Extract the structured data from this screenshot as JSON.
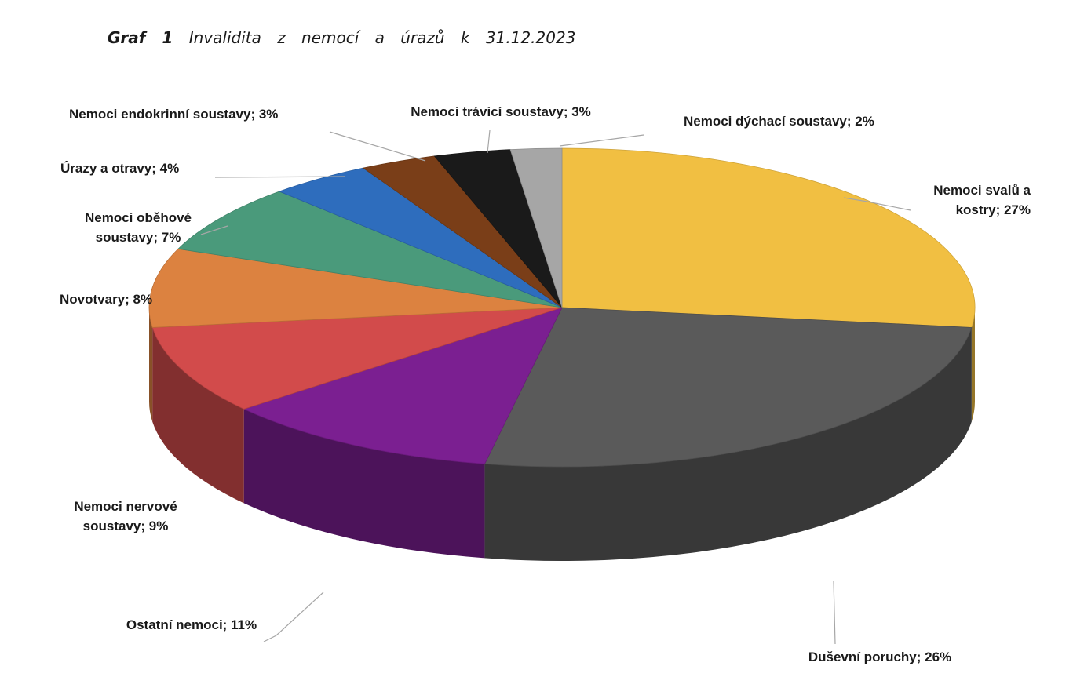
{
  "title": {
    "prefix": "Graf 1",
    "text": "Invalidita z nemocí a úrazů k 31.12.2023"
  },
  "chart_data": {
    "type": "pie",
    "style": "3d-exploded-tilted",
    "title": "Invalidita z nemocí a úrazů k 31.12.2023",
    "legend": "none",
    "data_labels": "category-and-percent",
    "slices": [
      {
        "name": "Nemoci svalů a kostry",
        "value": 27,
        "color": "#f1bf42",
        "label_lines": [
          "Nemoci svalů a",
          "kostry; 27%"
        ]
      },
      {
        "name": "Duševní poruchy",
        "value": 26,
        "color": "#5a5a5a",
        "label_lines": [
          "Duševní poruchy; 26%"
        ]
      },
      {
        "name": "Ostatní nemoci",
        "value": 11,
        "color": "#7b1f91",
        "label_lines": [
          "Ostatní nemoci; 11%"
        ]
      },
      {
        "name": "Nemoci nervové soustavy",
        "value": 9,
        "color": "#d24b4b",
        "label_lines": [
          "Nemoci nervové",
          "soustavy; 9%"
        ]
      },
      {
        "name": "Novotvary",
        "value": 8,
        "color": "#dc8240",
        "label_lines": [
          "Novotvary; 8%"
        ]
      },
      {
        "name": "Nemoci oběhové soustavy",
        "value": 7,
        "color": "#4a9a7b",
        "label_lines": [
          "Nemoci oběhové",
          "soustavy; 7%"
        ]
      },
      {
        "name": "Úrazy a otravy",
        "value": 4,
        "color": "#2e6dbd",
        "label_lines": [
          "Úrazy a otravy; 4%"
        ]
      },
      {
        "name": "Nemoci endokrinní soustavy",
        "value": 3,
        "color": "#7a3e18",
        "label_lines": [
          "Nemoci endokrinní soustavy; 3%"
        ]
      },
      {
        "name": "Nemoci trávicí soustavy",
        "value": 3,
        "color": "#1a1a1a",
        "label_lines": [
          "Nemoci trávicí soustavy; 3%"
        ]
      },
      {
        "name": "Nemoci dýchací soustavy",
        "value": 2,
        "color": "#a6a6a6",
        "label_lines": [
          "Nemoci dýchací soustavy; 2%"
        ]
      }
    ]
  }
}
